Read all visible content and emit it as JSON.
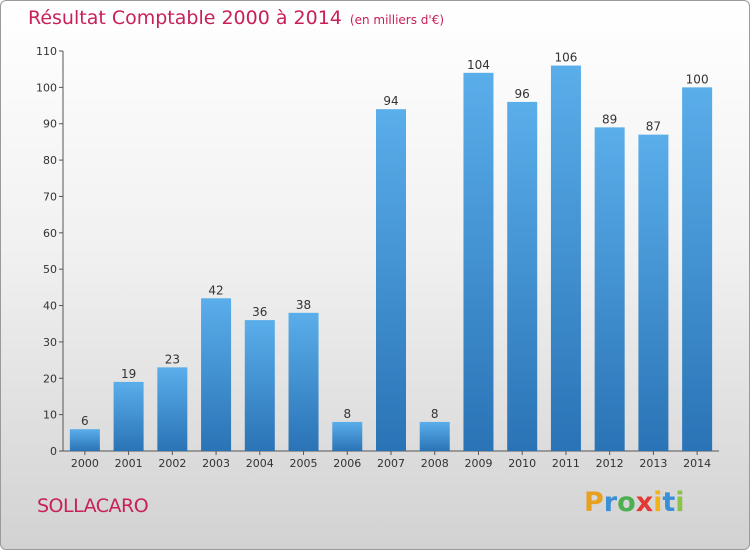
{
  "header": {
    "title": "Résultat Comptable 2000 à 2014",
    "unit": "(en milliers d'€)"
  },
  "footer": {
    "commune": "SOLLACARO",
    "logo": {
      "letters": [
        "P",
        "r",
        "o",
        "x",
        "i",
        "t",
        "i"
      ],
      "colors": [
        "#e8a020",
        "#3a8fd6",
        "#4caf50",
        "#e53935",
        "#f2b21a",
        "#3a8fd6",
        "#8bc34a"
      ]
    }
  },
  "chart_data": {
    "type": "bar",
    "categories": [
      "2000",
      "2001",
      "2002",
      "2003",
      "2004",
      "2005",
      "2006",
      "2007",
      "2008",
      "2009",
      "2010",
      "2011",
      "2012",
      "2013",
      "2014"
    ],
    "values": [
      6,
      19,
      23,
      42,
      36,
      38,
      8,
      94,
      8,
      104,
      96,
      106,
      89,
      87,
      100
    ],
    "ylim": [
      0,
      110
    ],
    "yticks": [
      0,
      10,
      20,
      30,
      40,
      50,
      60,
      70,
      80,
      90,
      100,
      110
    ],
    "grid": false,
    "bar_color": "#3a8fd6",
    "text_color": "#333333"
  }
}
